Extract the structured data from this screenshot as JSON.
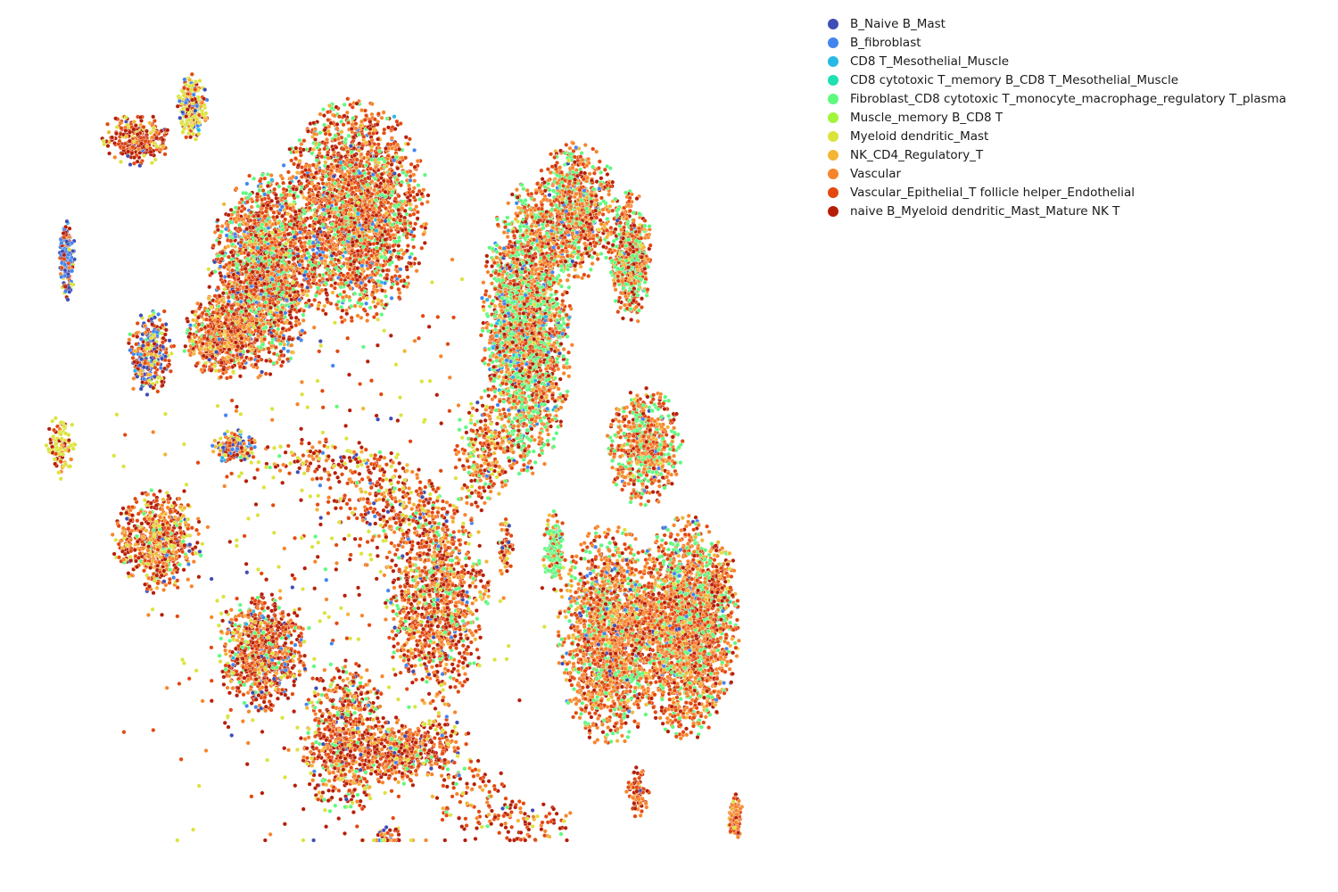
{
  "chart_data": {
    "type": "scatter",
    "title": "",
    "xlabel": "",
    "ylabel": "",
    "axes_visible": false,
    "grid": false,
    "legend_position": "top-right, outside plot",
    "xlim": [
      0,
      1
    ],
    "ylim": [
      0,
      1
    ],
    "series": [
      {
        "name": "B_Naive B_Mast",
        "color": "#3e4db5"
      },
      {
        "name": "B_fibroblast",
        "color": "#4386ee"
      },
      {
        "name": "CD8 T_Mesothelial_Muscle",
        "color": "#27b9e6"
      },
      {
        "name": "CD8 cytotoxic T_memory B_CD8 T_Mesothelial_Muscle",
        "color": "#1ee0b0"
      },
      {
        "name": "Fibroblast_CD8 cytotoxic T_monocyte_macrophage_regulatory T_plasma",
        "color": "#5dfa7e"
      },
      {
        "name": "Muscle_memory B_CD8 T",
        "color": "#a2f53a"
      },
      {
        "name": "Myeloid dendritic_Mast",
        "color": "#dbe33c"
      },
      {
        "name": "NK_CD4_Regulatory_T",
        "color": "#f3b536"
      },
      {
        "name": "Vascular",
        "color": "#f7842a"
      },
      {
        "name": "Vascular_Epithelial_T follicle helper_Endothelial",
        "color": "#e3480f"
      },
      {
        "name": "naive B_Myeloid dendritic_Mast_Mature NK T",
        "color": "#b61e07"
      }
    ],
    "clusters": [
      {
        "x": 0.44,
        "y": 0.8,
        "rx": 0.1,
        "ry": 0.13,
        "n": 2600,
        "mix": [
          1,
          3,
          1,
          0,
          14,
          0,
          1,
          6,
          18,
          26,
          18
        ]
      },
      {
        "x": 0.31,
        "y": 0.72,
        "rx": 0.07,
        "ry": 0.12,
        "n": 2000,
        "mix": [
          2,
          5,
          1,
          0,
          16,
          0,
          2,
          6,
          18,
          24,
          18
        ]
      },
      {
        "x": 0.25,
        "y": 0.64,
        "rx": 0.05,
        "ry": 0.05,
        "n": 600,
        "mix": [
          2,
          1,
          0,
          0,
          4,
          0,
          8,
          10,
          16,
          26,
          28
        ]
      },
      {
        "x": 0.15,
        "y": 0.62,
        "rx": 0.03,
        "ry": 0.05,
        "n": 300,
        "mix": [
          14,
          10,
          1,
          0,
          4,
          0,
          10,
          4,
          8,
          14,
          20
        ]
      },
      {
        "x": 0.21,
        "y": 0.93,
        "rx": 0.02,
        "ry": 0.04,
        "n": 260,
        "mix": [
          3,
          6,
          1,
          0,
          2,
          0,
          40,
          8,
          6,
          12,
          20
        ]
      },
      {
        "x": 0.13,
        "y": 0.89,
        "rx": 0.05,
        "ry": 0.03,
        "n": 260,
        "mix": [
          2,
          1,
          0,
          0,
          0,
          0,
          10,
          4,
          10,
          30,
          40
        ]
      },
      {
        "x": 0.03,
        "y": 0.74,
        "rx": 0.01,
        "ry": 0.05,
        "n": 170,
        "mix": [
          30,
          30,
          4,
          0,
          0,
          0,
          6,
          0,
          6,
          8,
          16
        ]
      },
      {
        "x": 0.02,
        "y": 0.5,
        "rx": 0.02,
        "ry": 0.04,
        "n": 120,
        "mix": [
          0,
          0,
          0,
          0,
          0,
          0,
          50,
          10,
          10,
          10,
          20
        ]
      },
      {
        "x": 0.27,
        "y": 0.5,
        "rx": 0.03,
        "ry": 0.02,
        "n": 160,
        "mix": [
          12,
          12,
          1,
          0,
          2,
          0,
          16,
          8,
          10,
          18,
          20
        ]
      },
      {
        "x": 0.16,
        "y": 0.38,
        "rx": 0.06,
        "ry": 0.06,
        "n": 650,
        "mix": [
          2,
          1,
          0,
          0,
          6,
          0,
          12,
          10,
          18,
          24,
          26
        ]
      },
      {
        "x": 0.31,
        "y": 0.24,
        "rx": 0.06,
        "ry": 0.07,
        "n": 850,
        "mix": [
          3,
          3,
          1,
          0,
          8,
          0,
          4,
          6,
          18,
          28,
          28
        ]
      },
      {
        "x": 0.43,
        "y": 0.13,
        "rx": 0.06,
        "ry": 0.09,
        "n": 750,
        "mix": [
          2,
          2,
          0,
          0,
          10,
          0,
          2,
          8,
          20,
          28,
          26
        ]
      },
      {
        "x": 0.56,
        "y": 0.31,
        "rx": 0.07,
        "ry": 0.13,
        "n": 1150,
        "mix": [
          1,
          2,
          0,
          0,
          12,
          0,
          2,
          8,
          22,
          28,
          24
        ]
      },
      {
        "x": 0.51,
        "y": 0.11,
        "rx": 0.05,
        "ry": 0.04,
        "n": 350,
        "mix": [
          2,
          2,
          0,
          0,
          6,
          0,
          2,
          8,
          24,
          30,
          26
        ]
      },
      {
        "x": 0.69,
        "y": 0.65,
        "rx": 0.06,
        "ry": 0.17,
        "n": 2600,
        "mix": [
          1,
          3,
          1,
          0,
          30,
          0,
          1,
          7,
          22,
          20,
          14
        ]
      },
      {
        "x": 0.76,
        "y": 0.8,
        "rx": 0.06,
        "ry": 0.08,
        "n": 1000,
        "mix": [
          1,
          2,
          0,
          0,
          22,
          0,
          1,
          8,
          28,
          26,
          12
        ]
      },
      {
        "x": 0.84,
        "y": 0.74,
        "rx": 0.03,
        "ry": 0.08,
        "n": 600,
        "mix": [
          1,
          2,
          0,
          0,
          26,
          0,
          1,
          6,
          26,
          26,
          12
        ]
      },
      {
        "x": 0.86,
        "y": 0.5,
        "rx": 0.05,
        "ry": 0.07,
        "n": 700,
        "mix": [
          1,
          2,
          0,
          0,
          24,
          0,
          1,
          8,
          28,
          26,
          10
        ]
      },
      {
        "x": 0.81,
        "y": 0.26,
        "rx": 0.07,
        "ry": 0.13,
        "n": 1850,
        "mix": [
          1,
          2,
          0,
          0,
          18,
          0,
          1,
          8,
          30,
          28,
          12
        ]
      },
      {
        "x": 0.92,
        "y": 0.27,
        "rx": 0.07,
        "ry": 0.13,
        "n": 2300,
        "mix": [
          1,
          2,
          0,
          0,
          18,
          0,
          1,
          8,
          30,
          30,
          10
        ]
      },
      {
        "x": 0.73,
        "y": 0.37,
        "rx": 0.015,
        "ry": 0.05,
        "n": 180,
        "mix": [
          2,
          2,
          0,
          0,
          60,
          0,
          4,
          4,
          10,
          10,
          8
        ]
      },
      {
        "x": 0.66,
        "y": 0.37,
        "rx": 0.01,
        "ry": 0.04,
        "n": 70,
        "mix": [
          4,
          2,
          0,
          0,
          4,
          0,
          20,
          6,
          10,
          20,
          34
        ]
      },
      {
        "x": 0.85,
        "y": 0.06,
        "rx": 0.015,
        "ry": 0.03,
        "n": 80,
        "mix": [
          2,
          0,
          0,
          0,
          0,
          0,
          4,
          6,
          30,
          30,
          28
        ]
      },
      {
        "x": 0.5,
        "y": 0.43,
        "rx": 0.08,
        "ry": 0.06,
        "n": 250,
        "mix": [
          4,
          2,
          0,
          0,
          4,
          0,
          6,
          6,
          20,
          28,
          30
        ]
      },
      {
        "x": 0.4,
        "y": 0.48,
        "rx": 0.1,
        "ry": 0.03,
        "n": 140,
        "mix": [
          2,
          2,
          0,
          0,
          4,
          0,
          20,
          6,
          16,
          22,
          28
        ]
      },
      {
        "x": 0.63,
        "y": 0.49,
        "rx": 0.04,
        "ry": 0.07,
        "n": 260,
        "mix": [
          1,
          2,
          0,
          0,
          8,
          0,
          10,
          6,
          26,
          26,
          20
        ]
      },
      {
        "x": 0.57,
        "y": 0.12,
        "rx": 0.04,
        "ry": 0.05,
        "n": 130,
        "mix": [
          10,
          4,
          0,
          0,
          4,
          0,
          12,
          6,
          16,
          20,
          28
        ]
      },
      {
        "x": 0.49,
        "y": 0.0,
        "rx": 0.02,
        "ry": 0.02,
        "n": 60,
        "mix": [
          10,
          8,
          0,
          0,
          4,
          0,
          4,
          6,
          22,
          24,
          22
        ]
      },
      {
        "x": 0.7,
        "y": 0.02,
        "rx": 0.06,
        "ry": 0.03,
        "n": 80,
        "mix": [
          1,
          1,
          0,
          0,
          2,
          0,
          4,
          6,
          24,
          30,
          30
        ]
      },
      {
        "x": 0.62,
        "y": 0.05,
        "rx": 0.06,
        "ry": 0.05,
        "n": 90,
        "mix": [
          1,
          1,
          0,
          0,
          2,
          0,
          6,
          6,
          20,
          30,
          34
        ]
      },
      {
        "x": 0.97,
        "y": 0.33,
        "rx": 0.02,
        "ry": 0.05,
        "n": 60,
        "mix": [
          0,
          0,
          0,
          3,
          2,
          0,
          8,
          6,
          20,
          24,
          37
        ]
      },
      {
        "x": 0.99,
        "y": 0.03,
        "rx": 0.01,
        "ry": 0.03,
        "n": 100,
        "mix": [
          0,
          2,
          0,
          0,
          0,
          0,
          2,
          8,
          40,
          30,
          18
        ]
      },
      {
        "x": 0.4,
        "y": 0.35,
        "rx": 0.3,
        "ry": 0.45,
        "n": 500,
        "mix": [
          3,
          2,
          0,
          0,
          4,
          0,
          30,
          4,
          14,
          20,
          23
        ]
      }
    ]
  }
}
